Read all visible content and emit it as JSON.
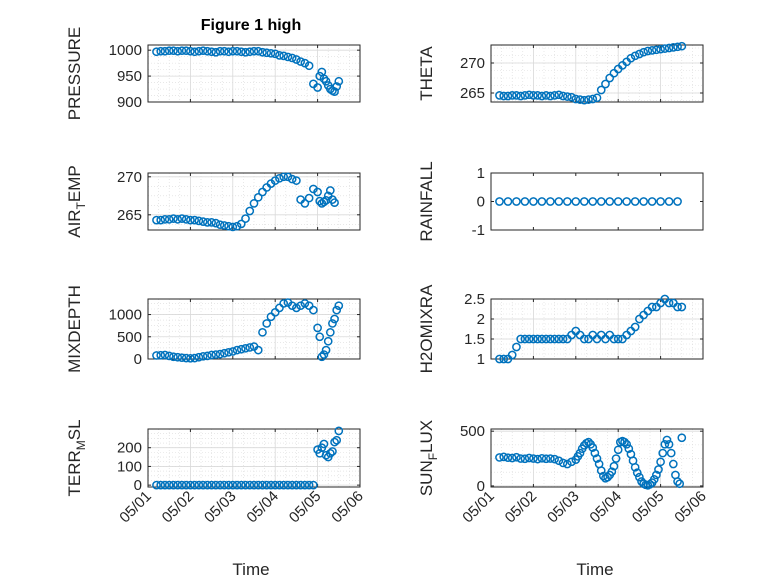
{
  "figure": {
    "title": "Figure 1 high"
  },
  "colors": {
    "marker": "#0072BD",
    "axis": "#262626",
    "grid": "#d9d9d9"
  },
  "x_ticks": [
    "05/01",
    "05/02",
    "05/03",
    "05/04",
    "05/05",
    "05/06"
  ],
  "chart_data": [
    {
      "type": "scatter",
      "ylabel": "PRESSURE",
      "ylim": [
        900,
        1010
      ],
      "yticks": [
        900,
        950,
        1000
      ],
      "grid": true,
      "x_unit": "days since 05/01",
      "x": [
        0.2,
        0.3,
        0.4,
        0.5,
        0.6,
        0.7,
        0.8,
        0.9,
        1.0,
        1.1,
        1.2,
        1.3,
        1.4,
        1.5,
        1.6,
        1.7,
        1.8,
        1.9,
        2.0,
        2.1,
        2.2,
        2.3,
        2.4,
        2.5,
        2.6,
        2.7,
        2.8,
        2.9,
        3.0,
        3.1,
        3.2,
        3.3,
        3.4,
        3.5,
        3.6,
        3.7,
        3.8,
        3.9,
        4.0,
        4.05,
        4.1,
        4.15,
        4.2,
        4.25,
        4.3,
        4.35,
        4.4,
        4.45,
        4.5
      ],
      "y": [
        997,
        998,
        998,
        999,
        999,
        998,
        999,
        999,
        998,
        997,
        998,
        999,
        998,
        997,
        996,
        998,
        998,
        997,
        998,
        998,
        997,
        996,
        997,
        998,
        998,
        996,
        995,
        994,
        993,
        990,
        989,
        987,
        985,
        982,
        978,
        975,
        970,
        935,
        928,
        950,
        958,
        945,
        940,
        932,
        925,
        922,
        920,
        930,
        940
      ]
    },
    {
      "type": "scatter",
      "ylabel": "THETA",
      "ylim": [
        263.5,
        273
      ],
      "yticks": [
        265,
        270
      ],
      "grid": true,
      "x_unit": "days since 05/01",
      "x": [
        0.2,
        0.3,
        0.4,
        0.5,
        0.6,
        0.7,
        0.8,
        0.9,
        1.0,
        1.1,
        1.2,
        1.3,
        1.4,
        1.5,
        1.6,
        1.7,
        1.8,
        1.9,
        2.0,
        2.1,
        2.2,
        2.3,
        2.4,
        2.5,
        2.6,
        2.7,
        2.8,
        2.9,
        3.0,
        3.1,
        3.2,
        3.3,
        3.4,
        3.5,
        3.6,
        3.7,
        3.8,
        3.9,
        4.0,
        4.1,
        4.2,
        4.3,
        4.4,
        4.5
      ],
      "y": [
        264.6,
        264.5,
        264.5,
        264.6,
        264.6,
        264.5,
        264.6,
        264.7,
        264.6,
        264.6,
        264.5,
        264.6,
        264.5,
        264.6,
        264.7,
        264.5,
        264.4,
        264.3,
        264.0,
        263.9,
        263.8,
        263.9,
        264.0,
        264.2,
        265.5,
        266.5,
        267.5,
        268.3,
        269.0,
        269.6,
        270.2,
        270.8,
        271.2,
        271.5,
        271.8,
        272.0,
        272.1,
        272.2,
        272.3,
        272.4,
        272.5,
        272.6,
        272.7,
        272.8
      ]
    },
    {
      "type": "scatter",
      "ylabel": "AIR_TEMP",
      "ylim": [
        263,
        270.5
      ],
      "yticks": [
        265,
        270
      ],
      "grid": true,
      "x_unit": "days since 05/01",
      "x": [
        0.2,
        0.3,
        0.4,
        0.5,
        0.6,
        0.7,
        0.8,
        0.9,
        1.0,
        1.1,
        1.2,
        1.3,
        1.4,
        1.5,
        1.6,
        1.7,
        1.8,
        1.9,
        2.0,
        2.1,
        2.2,
        2.3,
        2.4,
        2.5,
        2.6,
        2.7,
        2.8,
        2.9,
        3.0,
        3.1,
        3.2,
        3.3,
        3.4,
        3.5,
        3.6,
        3.7,
        3.8,
        3.9,
        4.0,
        4.05,
        4.1,
        4.15,
        4.2,
        4.25,
        4.3,
        4.35,
        4.4
      ],
      "y": [
        264.3,
        264.3,
        264.4,
        264.4,
        264.5,
        264.4,
        264.5,
        264.4,
        264.3,
        264.3,
        264.2,
        264.1,
        264.0,
        264.0,
        263.9,
        263.7,
        263.6,
        263.5,
        263.4,
        263.5,
        263.8,
        264.5,
        265.5,
        266.5,
        267.3,
        268.0,
        268.6,
        269.1,
        269.5,
        269.8,
        270.0,
        270.0,
        269.7,
        269.5,
        267.0,
        266.5,
        267.2,
        268.4,
        268.0,
        266.8,
        266.5,
        266.7,
        266.9,
        267.5,
        268.2,
        267.0,
        266.6
      ]
    },
    {
      "type": "scatter",
      "ylabel": "RAINFALL",
      "ylim": [
        -1,
        1
      ],
      "yticks": [
        -1,
        0,
        1
      ],
      "grid": false,
      "x_unit": "days since 05/01",
      "x": [
        0.2,
        0.4,
        0.6,
        0.8,
        1.0,
        1.2,
        1.4,
        1.6,
        1.8,
        2.0,
        2.2,
        2.4,
        2.6,
        2.8,
        3.0,
        3.2,
        3.4,
        3.6,
        3.8,
        4.0,
        4.2,
        4.4
      ],
      "y": [
        0,
        0,
        0,
        0,
        0,
        0,
        0,
        0,
        0,
        0,
        0,
        0,
        0,
        0,
        0,
        0,
        0,
        0,
        0,
        0,
        0,
        0
      ]
    },
    {
      "type": "scatter",
      "ylabel": "MIXDEPTH",
      "ylim": [
        0,
        1350
      ],
      "yticks": [
        0,
        500,
        1000
      ],
      "grid": true,
      "x_unit": "days since 05/01",
      "x": [
        0.2,
        0.3,
        0.4,
        0.5,
        0.6,
        0.7,
        0.8,
        0.9,
        1.0,
        1.1,
        1.2,
        1.3,
        1.4,
        1.5,
        1.6,
        1.7,
        1.8,
        1.9,
        2.0,
        2.1,
        2.2,
        2.3,
        2.4,
        2.5,
        2.6,
        2.7,
        2.8,
        2.9,
        3.0,
        3.1,
        3.2,
        3.3,
        3.4,
        3.5,
        3.6,
        3.7,
        3.8,
        3.9,
        4.0,
        4.05,
        4.1,
        4.15,
        4.2,
        4.25,
        4.3,
        4.35,
        4.4,
        4.45,
        4.5
      ],
      "y": [
        80,
        85,
        90,
        70,
        50,
        40,
        30,
        20,
        15,
        20,
        40,
        60,
        70,
        90,
        100,
        110,
        130,
        150,
        170,
        200,
        220,
        240,
        260,
        280,
        200,
        600,
        800,
        950,
        1050,
        1150,
        1250,
        1270,
        1200,
        1150,
        1200,
        1250,
        1200,
        1100,
        700,
        500,
        50,
        100,
        200,
        400,
        600,
        800,
        900,
        1100,
        1200
      ]
    },
    {
      "type": "scatter",
      "ylabel": "H2OMIXRA",
      "ylim": [
        1,
        2.5
      ],
      "yticks": [
        1,
        1.5,
        2,
        2.5
      ],
      "grid": true,
      "x_unit": "days since 05/01",
      "x": [
        0.2,
        0.3,
        0.4,
        0.5,
        0.6,
        0.7,
        0.8,
        0.9,
        1.0,
        1.1,
        1.2,
        1.3,
        1.4,
        1.5,
        1.6,
        1.7,
        1.8,
        1.9,
        2.0,
        2.1,
        2.2,
        2.3,
        2.4,
        2.5,
        2.6,
        2.7,
        2.8,
        2.9,
        3.0,
        3.1,
        3.2,
        3.3,
        3.4,
        3.5,
        3.6,
        3.7,
        3.8,
        3.9,
        4.0,
        4.1,
        4.2,
        4.3,
        4.4,
        4.5
      ],
      "y": [
        1.0,
        1.0,
        1.0,
        1.1,
        1.3,
        1.5,
        1.5,
        1.5,
        1.5,
        1.5,
        1.5,
        1.5,
        1.5,
        1.5,
        1.5,
        1.5,
        1.5,
        1.6,
        1.7,
        1.6,
        1.5,
        1.5,
        1.6,
        1.5,
        1.6,
        1.5,
        1.6,
        1.5,
        1.5,
        1.5,
        1.6,
        1.7,
        1.8,
        2.0,
        2.1,
        2.2,
        2.3,
        2.3,
        2.4,
        2.5,
        2.4,
        2.4,
        2.3,
        2.3
      ]
    },
    {
      "type": "scatter",
      "ylabel": "TERR_MSL",
      "ylim": [
        -10,
        300
      ],
      "yticks": [
        0,
        100,
        200
      ],
      "grid": true,
      "x_unit": "days since 05/01",
      "x": [
        0.2,
        0.3,
        0.4,
        0.5,
        0.6,
        0.7,
        0.8,
        0.9,
        1.0,
        1.1,
        1.2,
        1.3,
        1.4,
        1.5,
        1.6,
        1.7,
        1.8,
        1.9,
        2.0,
        2.1,
        2.2,
        2.3,
        2.4,
        2.5,
        2.6,
        2.7,
        2.8,
        2.9,
        3.0,
        3.1,
        3.2,
        3.3,
        3.4,
        3.5,
        3.6,
        3.7,
        3.8,
        3.9,
        4.0,
        4.05,
        4.1,
        4.15,
        4.2,
        4.25,
        4.3,
        4.35,
        4.4,
        4.45,
        4.5
      ],
      "y": [
        0,
        0,
        0,
        0,
        0,
        0,
        0,
        0,
        0,
        0,
        0,
        0,
        0,
        0,
        0,
        0,
        0,
        0,
        0,
        0,
        0,
        0,
        0,
        0,
        0,
        0,
        0,
        0,
        0,
        0,
        0,
        0,
        0,
        0,
        0,
        0,
        0,
        0,
        190,
        170,
        200,
        220,
        160,
        150,
        170,
        180,
        230,
        240,
        290
      ]
    },
    {
      "type": "scatter",
      "ylabel": "SUN_FLUX",
      "ylim": [
        -10,
        520
      ],
      "yticks": [
        0,
        500
      ],
      "grid": true,
      "x_unit": "days since 05/01",
      "x": [
        0.2,
        0.3,
        0.4,
        0.5,
        0.6,
        0.7,
        0.8,
        0.9,
        1.0,
        1.1,
        1.2,
        1.3,
        1.4,
        1.5,
        1.6,
        1.7,
        1.8,
        1.9,
        2.0,
        2.05,
        2.1,
        2.15,
        2.2,
        2.25,
        2.3,
        2.35,
        2.4,
        2.45,
        2.5,
        2.55,
        2.6,
        2.65,
        2.7,
        2.75,
        2.8,
        2.85,
        2.9,
        2.95,
        3.0,
        3.05,
        3.1,
        3.15,
        3.2,
        3.25,
        3.3,
        3.35,
        3.4,
        3.45,
        3.5,
        3.55,
        3.6,
        3.65,
        3.7,
        3.75,
        3.8,
        3.85,
        3.9,
        3.95,
        4.0,
        4.05,
        4.1,
        4.15,
        4.2,
        4.25,
        4.3,
        4.35,
        4.4,
        4.45,
        4.5
      ],
      "y": [
        260,
        265,
        258,
        255,
        262,
        250,
        248,
        255,
        250,
        245,
        252,
        248,
        250,
        245,
        230,
        210,
        200,
        220,
        240,
        270,
        300,
        340,
        370,
        390,
        400,
        380,
        350,
        300,
        250,
        200,
        140,
        90,
        70,
        80,
        100,
        130,
        180,
        250,
        330,
        400,
        410,
        400,
        380,
        340,
        290,
        230,
        170,
        120,
        80,
        40,
        20,
        10,
        5,
        15,
        30,
        60,
        100,
        150,
        220,
        300,
        380,
        420,
        380,
        300,
        200,
        100,
        40,
        20,
        440
      ]
    }
  ]
}
